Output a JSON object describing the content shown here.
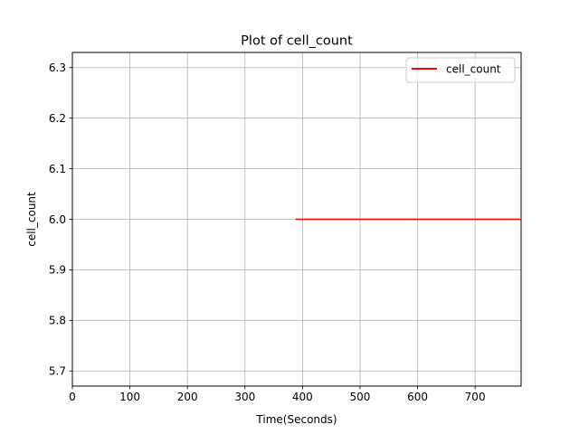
{
  "chart_data": {
    "type": "line",
    "title": "Plot of cell_count",
    "xlabel": "Time(Seconds)",
    "ylabel": "cell_count",
    "xlim": [
      0,
      780
    ],
    "ylim": [
      5.67,
      6.33
    ],
    "xticks": [
      0,
      100,
      200,
      300,
      400,
      500,
      600,
      700
    ],
    "yticks": [
      5.7,
      5.8,
      5.9,
      6.0,
      6.1,
      6.2,
      6.3
    ],
    "xtick_labels": [
      "0",
      "100",
      "200",
      "300",
      "400",
      "500",
      "600",
      "700"
    ],
    "ytick_labels": [
      "5.7",
      "5.8",
      "5.9",
      "6.0",
      "6.1",
      "6.2",
      "6.3"
    ],
    "grid": true,
    "legend_position": "top-right",
    "series": [
      {
        "name": "cell_count",
        "color": "#ff0000",
        "x": [
          388,
          780
        ],
        "y": [
          6.0,
          6.0
        ]
      }
    ]
  }
}
